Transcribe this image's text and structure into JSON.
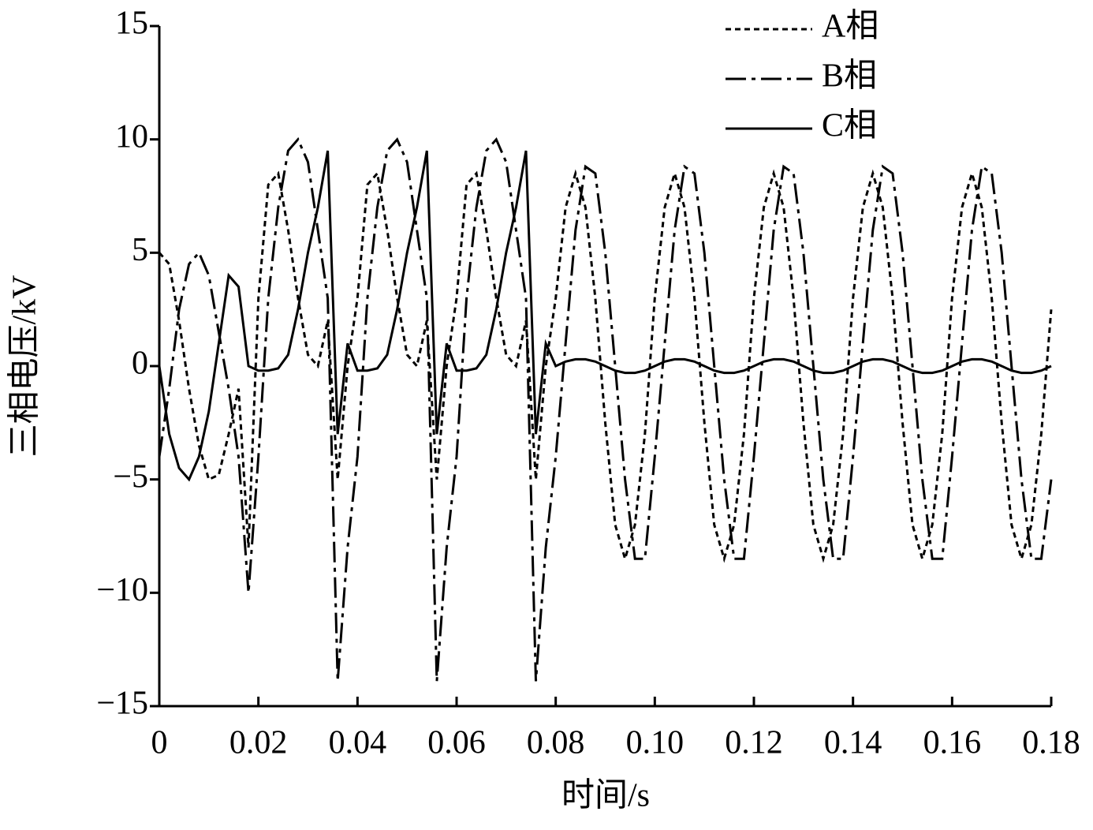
{
  "chart_data": {
    "type": "line",
    "xlabel": "时间/s",
    "ylabel": "三相电压/kV",
    "x": [
      0,
      0.002,
      0.004,
      0.006,
      0.008,
      0.01,
      0.012,
      0.014,
      0.016,
      0.018,
      0.02,
      0.022,
      0.024,
      0.026,
      0.028,
      0.03,
      0.032,
      0.034,
      0.036,
      0.038,
      0.04,
      0.042,
      0.044,
      0.046,
      0.048,
      0.05,
      0.052,
      0.054,
      0.056,
      0.058,
      0.06,
      0.062,
      0.064,
      0.066,
      0.068,
      0.07,
      0.072,
      0.074,
      0.076,
      0.078,
      0.08,
      0.082,
      0.084,
      0.086,
      0.088,
      0.09,
      0.092,
      0.094,
      0.096,
      0.098,
      0.1,
      0.102,
      0.104,
      0.106,
      0.108,
      0.11,
      0.112,
      0.114,
      0.116,
      0.118,
      0.12,
      0.122,
      0.124,
      0.126,
      0.128,
      0.13,
      0.132,
      0.134,
      0.136,
      0.138,
      0.14,
      0.142,
      0.144,
      0.146,
      0.148,
      0.15,
      0.152,
      0.154,
      0.156,
      0.158,
      0.16,
      0.162,
      0.164,
      0.166,
      0.168,
      0.17,
      0.172,
      0.174,
      0.176,
      0.178,
      0.18
    ],
    "series": [
      {
        "name": "A相",
        "color": "#000000",
        "dash": "7,5",
        "values": [
          5,
          4.5,
          2,
          -1,
          -3.5,
          -5,
          -4.8,
          -3,
          -1,
          -8,
          3,
          8,
          8.5,
          6,
          3,
          0.5,
          0,
          2,
          -5,
          0,
          3,
          8,
          8.5,
          6,
          3,
          0.5,
          0,
          2,
          -5,
          0,
          3,
          8,
          8.5,
          6,
          3,
          0.5,
          0,
          2,
          -5,
          0,
          3,
          7,
          8.5,
          7,
          3,
          -2.5,
          -7,
          -8.5,
          -7,
          -3,
          3,
          7,
          8.5,
          7,
          3,
          -2.5,
          -7,
          -8.5,
          -7,
          -3,
          3,
          7,
          8.5,
          7,
          3,
          -2.5,
          -7,
          -8.5,
          -7,
          -3,
          3,
          7,
          8.5,
          7,
          3,
          -2.5,
          -7,
          -8.5,
          -7,
          -3,
          3,
          7,
          8.5,
          7,
          3,
          -2.5,
          -7,
          -8.5,
          -7,
          -3,
          2.5
        ]
      },
      {
        "name": "B相",
        "color": "#000000",
        "dash": "26,7,5,7",
        "values": [
          -4,
          -1,
          2.5,
          4.5,
          5,
          4,
          1.5,
          -1,
          -4,
          -10,
          -4,
          3,
          7,
          9.5,
          10,
          9,
          6,
          3,
          -13.9,
          -8,
          -4,
          3,
          7,
          9.5,
          10,
          9,
          6,
          3,
          -13.9,
          -8,
          -4,
          3,
          7,
          9.5,
          10,
          9,
          6,
          3,
          -13.9,
          -8,
          -4,
          1,
          6,
          8.8,
          8.5,
          5,
          0,
          -5,
          -8.5,
          -8.5,
          -4,
          1,
          6,
          8.8,
          8.5,
          5,
          0,
          -5,
          -8.5,
          -8.5,
          -4,
          1,
          6,
          8.8,
          8.5,
          5,
          0,
          -5,
          -8.5,
          -8.5,
          -4,
          1,
          6,
          8.8,
          8.5,
          5,
          0,
          -5,
          -8.5,
          -8.5,
          -4,
          1,
          6,
          8.8,
          8.5,
          5,
          0,
          -5,
          -8.5,
          -8.5,
          -5
        ]
      },
      {
        "name": "C相",
        "color": "#000000",
        "dash": "none",
        "values": [
          0,
          -3,
          -4.5,
          -5,
          -4,
          -2,
          1,
          4,
          3.5,
          0,
          -0.2,
          -0.2,
          -0.1,
          0.5,
          2.5,
          5,
          7,
          9.5,
          -3,
          1,
          -0.2,
          -0.2,
          -0.1,
          0.5,
          2.5,
          5,
          7,
          9.5,
          -3,
          1,
          -0.2,
          -0.2,
          -0.1,
          0.5,
          2.5,
          5,
          7,
          9.5,
          -3,
          1,
          0,
          0.2,
          0.3,
          0.3,
          0.2,
          0,
          -0.2,
          -0.3,
          -0.3,
          -0.2,
          0,
          0.2,
          0.3,
          0.3,
          0.2,
          0,
          -0.2,
          -0.3,
          -0.3,
          -0.2,
          0,
          0.2,
          0.3,
          0.3,
          0.2,
          0,
          -0.2,
          -0.3,
          -0.3,
          -0.2,
          0,
          0.2,
          0.3,
          0.3,
          0.2,
          0,
          -0.2,
          -0.3,
          -0.3,
          -0.2,
          0,
          0.2,
          0.3,
          0.3,
          0.2,
          0,
          -0.2,
          -0.3,
          -0.3,
          -0.2,
          0
        ]
      }
    ],
    "xlim": [
      0,
      0.18
    ],
    "xticks": [
      0,
      0.02,
      0.04,
      0.06,
      0.08,
      {
        "value": 0.1,
        "label": "0.10"
      },
      {
        "value": 0.12,
        "label": "0.12"
      },
      {
        "value": 0.14,
        "label": "0.14"
      },
      {
        "value": 0.16,
        "label": "0.16"
      },
      {
        "value": 0.18,
        "label": "0.18"
      }
    ],
    "ylim": [
      -15,
      15
    ],
    "yticks": [
      {
        "value": -15,
        "label": "−15"
      },
      {
        "value": -10,
        "label": "−10"
      },
      {
        "value": -5,
        "label": "−5"
      },
      0,
      5,
      10,
      15
    ],
    "legend": "upper right",
    "grid": false
  }
}
